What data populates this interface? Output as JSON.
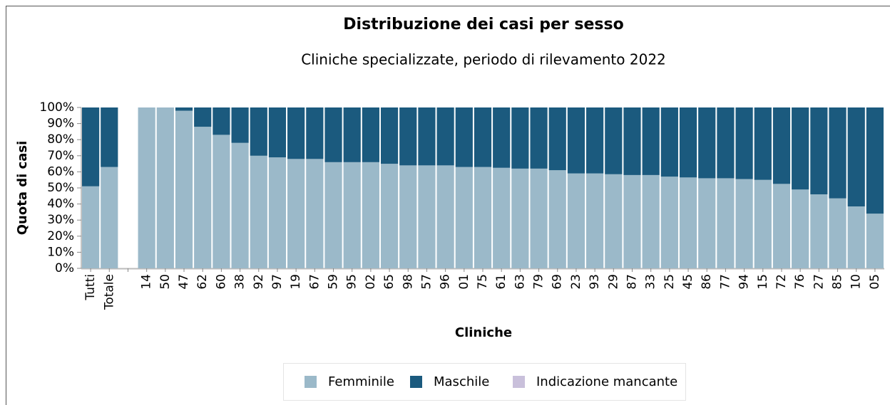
{
  "chart_data": {
    "type": "stacked_bar",
    "title": "Distribuzione dei casi per sesso",
    "subtitle": "Cliniche specializzate, periodo di rilevamento 2022",
    "x_label": "Cliniche",
    "y_label": "Quota di casi",
    "categories": [
      "Tutti",
      "Totale",
      null,
      "14",
      "50",
      "47",
      "62",
      "60",
      "38",
      "92",
      "97",
      "19",
      "67",
      "59",
      "95",
      "02",
      "65",
      "98",
      "57",
      "96",
      "01",
      "75",
      "61",
      "63",
      "79",
      "69",
      "23",
      "93",
      "29",
      "87",
      "33",
      "25",
      "45",
      "86",
      "77",
      "94",
      "15",
      "72",
      "76",
      "27",
      "85",
      "10",
      "05"
    ],
    "series": [
      {
        "name": "Femminile",
        "color": "#9bb9c9",
        "values": [
          51,
          63,
          null,
          100,
          100,
          98,
          88,
          83,
          78,
          70,
          69,
          68,
          68,
          66,
          66,
          66,
          65,
          64,
          64,
          64,
          63,
          63,
          62.5,
          62,
          62,
          61,
          59,
          59,
          58.5,
          58,
          58,
          57,
          56.5,
          56,
          56,
          55.5,
          55,
          52.5,
          49,
          46,
          43.5,
          38.5,
          34
        ]
      },
      {
        "name": "Maschile",
        "color": "#1b5a7e",
        "values": [
          49,
          37,
          null,
          0,
          0,
          2,
          12,
          17,
          22,
          30,
          31,
          32,
          32,
          34,
          34,
          34,
          35,
          36,
          36,
          36,
          37,
          37,
          37.5,
          38,
          38,
          39,
          41,
          41,
          41.5,
          42,
          42,
          43,
          43.5,
          44,
          44,
          44.5,
          45,
          47.5,
          51,
          54,
          56.5,
          61.5,
          66
        ]
      },
      {
        "name": "Indicazione mancante",
        "color": "#c9c0db",
        "values": [
          0,
          0,
          null,
          0,
          0,
          0,
          0,
          0,
          0,
          0,
          0,
          0,
          0,
          0,
          0,
          0,
          0,
          0,
          0,
          0,
          0,
          0,
          0,
          0,
          0,
          0,
          0,
          0,
          0,
          0,
          0,
          0,
          0,
          0,
          0,
          0,
          0,
          0,
          0,
          0,
          0,
          0,
          0
        ]
      }
    ],
    "ylim": [
      0,
      100
    ],
    "yticks": [
      {
        "value": 0,
        "label": "0%"
      },
      {
        "value": 10,
        "label": "10%"
      },
      {
        "value": 20,
        "label": "20%"
      },
      {
        "value": 30,
        "label": "30%"
      },
      {
        "value": 40,
        "label": "40%"
      },
      {
        "value": 50,
        "label": "50%"
      },
      {
        "value": 60,
        "label": "60%"
      },
      {
        "value": 70,
        "label": "70%"
      },
      {
        "value": 80,
        "label": "80%"
      },
      {
        "value": 90,
        "label": "90%"
      },
      {
        "value": 100,
        "label": "100%"
      }
    ],
    "legend": "bottom"
  }
}
